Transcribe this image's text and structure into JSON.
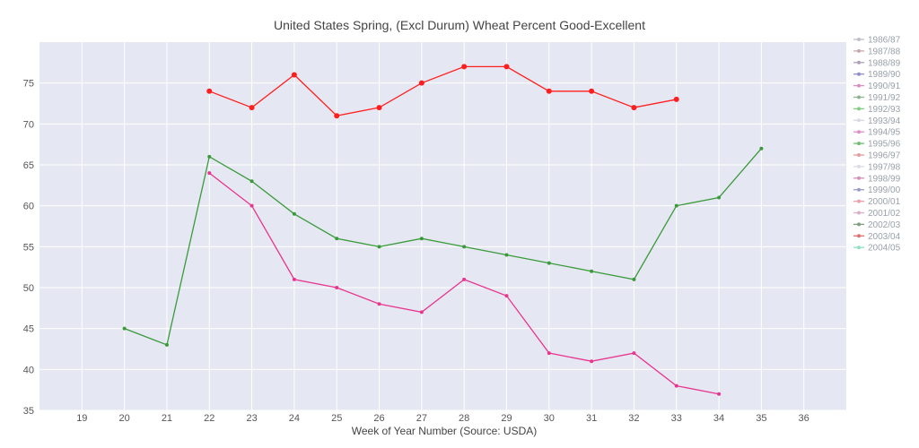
{
  "chart_data": {
    "type": "line",
    "title": "United States Spring, (Excl Durum) Wheat Percent Good-Excellent",
    "xlabel": "Week of Year Number     (Source: USDA)",
    "ylabel": "",
    "xlim": [
      18,
      37
    ],
    "ylim": [
      35,
      80
    ],
    "xticks": [
      19,
      20,
      21,
      22,
      23,
      24,
      25,
      26,
      27,
      28,
      29,
      30,
      31,
      32,
      33,
      34,
      35,
      36
    ],
    "yticks": [
      35,
      40,
      45,
      50,
      55,
      60,
      65,
      70,
      75
    ],
    "grid": true,
    "legend_position": "right",
    "plot_bg": "#e5e8f2",
    "legend": [
      {
        "name": "1986/87",
        "color": "#bfbfc6"
      },
      {
        "name": "1987/88",
        "color": "#c7a9ad"
      },
      {
        "name": "1988/89",
        "color": "#b09fb8"
      },
      {
        "name": "1989/90",
        "color": "#8f8fd0"
      },
      {
        "name": "1990/91",
        "color": "#d98fc0"
      },
      {
        "name": "1991/92",
        "color": "#8fb38f"
      },
      {
        "name": "1992/93",
        "color": "#7fd07f"
      },
      {
        "name": "1993/94",
        "color": "#d9d9e3"
      },
      {
        "name": "1994/95",
        "color": "#e08fc8"
      },
      {
        "name": "1995/96",
        "color": "#6fbf6f"
      },
      {
        "name": "1996/97",
        "color": "#e69c9c"
      },
      {
        "name": "1997/98",
        "color": "#dcdce6"
      },
      {
        "name": "1998/99",
        "color": "#d88fb8"
      },
      {
        "name": "1999/00",
        "color": "#9c9cc8"
      },
      {
        "name": "2000/01",
        "color": "#f0a0a8"
      },
      {
        "name": "2001/02",
        "color": "#d8b0c8"
      },
      {
        "name": "2002/03",
        "color": "#7fa07f"
      },
      {
        "name": "2003/04",
        "color": "#e57070"
      },
      {
        "name": "2004/05",
        "color": "#8fe0c8"
      }
    ],
    "series": [
      {
        "color": "#ff1e1e",
        "marker_size": 3,
        "points": [
          [
            22,
            74
          ],
          [
            23,
            72
          ],
          [
            24,
            76
          ],
          [
            25,
            71
          ],
          [
            26,
            72
          ],
          [
            27,
            75
          ],
          [
            28,
            77
          ],
          [
            29,
            77
          ],
          [
            30,
            74
          ],
          [
            31,
            74
          ],
          [
            32,
            72
          ],
          [
            33,
            73
          ]
        ]
      },
      {
        "color": "#3a9a3a",
        "marker_size": 2,
        "points": [
          [
            20,
            45
          ],
          [
            21,
            43
          ],
          [
            22,
            66
          ],
          [
            23,
            63
          ],
          [
            24,
            59
          ],
          [
            25,
            56
          ],
          [
            26,
            55
          ],
          [
            27,
            56
          ],
          [
            28,
            55
          ],
          [
            29,
            54
          ],
          [
            30,
            53
          ],
          [
            31,
            52
          ],
          [
            32,
            51
          ],
          [
            33,
            60
          ],
          [
            34,
            61
          ],
          [
            35,
            67
          ]
        ]
      },
      {
        "color": "#e8358f",
        "marker_size": 2,
        "points": [
          [
            22,
            64
          ],
          [
            23,
            60
          ],
          [
            24,
            51
          ],
          [
            25,
            50
          ],
          [
            26,
            48
          ],
          [
            27,
            47
          ],
          [
            28,
            51
          ],
          [
            29,
            49
          ],
          [
            30,
            42
          ],
          [
            31,
            41
          ],
          [
            32,
            42
          ],
          [
            33,
            38
          ],
          [
            34,
            37
          ]
        ]
      }
    ]
  }
}
